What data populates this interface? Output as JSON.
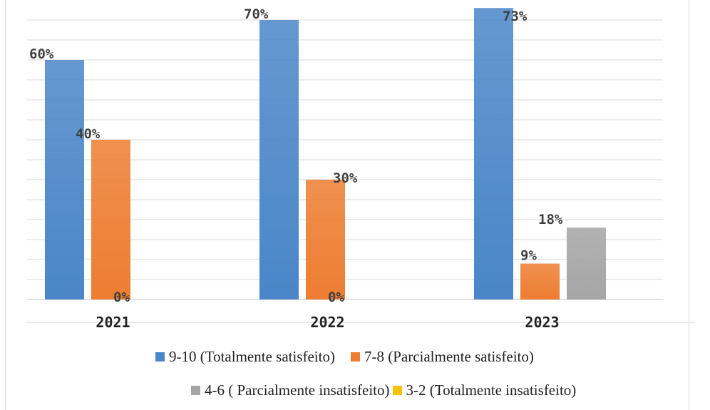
{
  "chart_data": {
    "type": "bar",
    "title": "",
    "xlabel": "",
    "ylabel": "",
    "ylim": [
      0,
      75
    ],
    "grid": true,
    "legend_position": "bottom",
    "categories": [
      "2021",
      "2022",
      "2023"
    ],
    "series": [
      {
        "name": "9-10 (Totalmente satisfeito)",
        "color": "#4a86c8",
        "values": [
          60,
          70,
          73
        ],
        "labels": [
          "60%",
          "70%",
          "73%"
        ]
      },
      {
        "name": "7-8 (Parcialmente satisfeito)",
        "color": "#ed7d31",
        "values": [
          40,
          30,
          9
        ],
        "labels": [
          "40%",
          "30%",
          "9%"
        ]
      },
      {
        "name": "4-6 ( Parcialmente insatisfeito)",
        "color": "#a5a5a5",
        "values": [
          0,
          0,
          18
        ],
        "labels": [
          "0%",
          "0%",
          "18%"
        ]
      },
      {
        "name": "3-2 (Totalmente insatisfeito)",
        "color": "#ffc000",
        "values": [
          null,
          null,
          null
        ],
        "labels": [
          null,
          null,
          null
        ]
      }
    ]
  }
}
